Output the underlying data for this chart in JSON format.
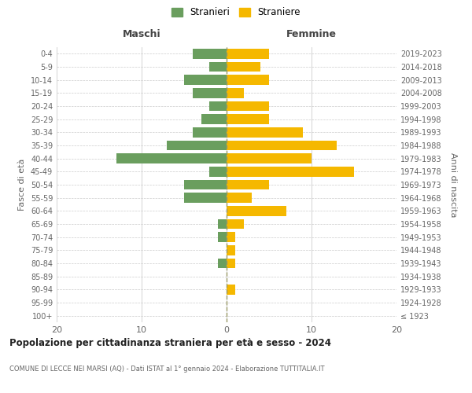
{
  "age_groups": [
    "100+",
    "95-99",
    "90-94",
    "85-89",
    "80-84",
    "75-79",
    "70-74",
    "65-69",
    "60-64",
    "55-59",
    "50-54",
    "45-49",
    "40-44",
    "35-39",
    "30-34",
    "25-29",
    "20-24",
    "15-19",
    "10-14",
    "5-9",
    "0-4"
  ],
  "birth_years": [
    "≤ 1923",
    "1924-1928",
    "1929-1933",
    "1934-1938",
    "1939-1943",
    "1944-1948",
    "1949-1953",
    "1954-1958",
    "1959-1963",
    "1964-1968",
    "1969-1973",
    "1974-1978",
    "1979-1983",
    "1984-1988",
    "1989-1993",
    "1994-1998",
    "1999-2003",
    "2004-2008",
    "2009-2013",
    "2014-2018",
    "2019-2023"
  ],
  "males": [
    0,
    0,
    0,
    0,
    1,
    0,
    1,
    1,
    0,
    5,
    5,
    2,
    13,
    7,
    4,
    3,
    2,
    4,
    5,
    2,
    4
  ],
  "females": [
    0,
    0,
    1,
    0,
    1,
    1,
    1,
    2,
    7,
    3,
    5,
    15,
    10,
    13,
    9,
    5,
    5,
    2,
    5,
    4,
    5
  ],
  "male_color": "#6a9e5e",
  "female_color": "#f5b800",
  "background_color": "#ffffff",
  "grid_color": "#cccccc",
  "title": "Popolazione per cittadinanza straniera per età e sesso - 2024",
  "subtitle": "COMUNE DI LECCE NEI MARSI (AQ) - Dati ISTAT al 1° gennaio 2024 - Elaborazione TUTTITALIA.IT",
  "xlabel_left": "Maschi",
  "xlabel_right": "Femmine",
  "ylabel_left": "Fasce di età",
  "ylabel_right": "Anni di nascita",
  "xlim": 20,
  "legend_male": "Stranieri",
  "legend_female": "Straniere"
}
